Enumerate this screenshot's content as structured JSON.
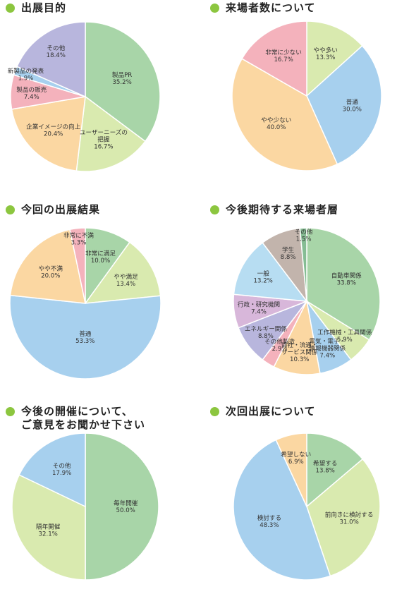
{
  "chart_data": [
    {
      "type": "pie",
      "title": "出展目的",
      "slices": [
        {
          "label": "製品PR",
          "value": "35.2%",
          "pct": 35.2,
          "color": "#a8d5a8"
        },
        {
          "label": "ユーザーニーズの把握",
          "lines": [
            "ユーザーニーズの",
            "把握"
          ],
          "value": "16.7%",
          "pct": 16.7,
          "color": "#d9eaaf"
        },
        {
          "label": "企業イメージの向上",
          "value": "20.4%",
          "pct": 20.4,
          "color": "#fbd7a2"
        },
        {
          "label": "製品の販売",
          "value": "7.4%",
          "pct": 7.4,
          "color": "#f4b2bc"
        },
        {
          "label": "新製品の発表",
          "value": "1.9%",
          "pct": 1.9,
          "color": "#a7d0ee"
        },
        {
          "label": "その他",
          "value": "18.4%",
          "pct": 18.4,
          "color": "#b8b6dd"
        }
      ]
    },
    {
      "type": "pie",
      "title": "来場者数について",
      "slices": [
        {
          "label": "やや多い",
          "value": "13.3%",
          "pct": 13.3,
          "color": "#d9eaaf"
        },
        {
          "label": "普通",
          "value": "30.0%",
          "pct": 30.0,
          "color": "#a7d0ee"
        },
        {
          "label": "やや少ない",
          "value": "40.0%",
          "pct": 40.0,
          "color": "#fbd7a2"
        },
        {
          "label": "非常に少ない",
          "value": "16.7%",
          "pct": 16.7,
          "color": "#f4b2bc"
        }
      ]
    },
    {
      "type": "pie",
      "title": "今回の出展結果",
      "slices": [
        {
          "label": "非常に満足",
          "value": "10.0%",
          "pct": 10.0,
          "color": "#a8d5a8"
        },
        {
          "label": "やや満足",
          "value": "13.4%",
          "pct": 13.4,
          "color": "#d9eaaf"
        },
        {
          "label": "普通",
          "value": "53.3%",
          "pct": 53.3,
          "color": "#a7d0ee"
        },
        {
          "label": "やや不満",
          "value": "20.0%",
          "pct": 20.0,
          "color": "#fbd7a2"
        },
        {
          "label": "非常に不満",
          "value": "3.3%",
          "pct": 3.3,
          "color": "#f4b2bc"
        }
      ]
    },
    {
      "type": "pie",
      "title": "今後期待する来場者層",
      "slices": [
        {
          "label": "自動車関係",
          "value": "33.8%",
          "pct": 33.8,
          "color": "#a8d5a8"
        },
        {
          "label": "工作機械・工具関係",
          "value": "5.9%",
          "pct": 5.9,
          "color": "#d9eaaf"
        },
        {
          "label": "電気・電子・情報機器関係",
          "lines": [
            "電気・電子・",
            "情報機器関係"
          ],
          "value": "7.4%",
          "pct": 7.4,
          "color": "#a7d0ee"
        },
        {
          "label": "商社・流通・サービス関係",
          "lines": [
            "商社・流通・",
            "サービス関係"
          ],
          "value": "10.3%",
          "pct": 10.3,
          "color": "#fbd7a2"
        },
        {
          "label": "その他製造",
          "value": "2.9%",
          "pct": 2.9,
          "color": "#f4b2bc"
        },
        {
          "label": "エネルギー関係",
          "value": "8.8%",
          "pct": 8.8,
          "color": "#b8b6dd"
        },
        {
          "label": "行政・研究機関",
          "value": "7.4%",
          "pct": 7.4,
          "color": "#d8b7da"
        },
        {
          "label": "一般",
          "value": "13.2%",
          "pct": 13.2,
          "color": "#b7ddf2"
        },
        {
          "label": "学生",
          "value": "8.8%",
          "pct": 8.8,
          "color": "#c2b4ac"
        },
        {
          "label": "その他",
          "value": "1.5%",
          "pct": 1.5,
          "color": "#86bd94"
        }
      ]
    },
    {
      "type": "pie",
      "title": "今後の開催について、\nご意見をお聞かせ下さい",
      "slices": [
        {
          "label": "毎年開催",
          "value": "50.0%",
          "pct": 50.0,
          "color": "#a8d5a8"
        },
        {
          "label": "隔年開催",
          "value": "32.1%",
          "pct": 32.1,
          "color": "#d9eaaf"
        },
        {
          "label": "その他",
          "value": "17.9%",
          "pct": 17.9,
          "color": "#a7d0ee"
        }
      ]
    },
    {
      "type": "pie",
      "title": "次回出展について",
      "slices": [
        {
          "label": "希望する",
          "value": "13.8%",
          "pct": 13.8,
          "color": "#a8d5a8"
        },
        {
          "label": "前向きに検討する",
          "value": "31.0%",
          "pct": 31.0,
          "color": "#d9eaaf"
        },
        {
          "label": "検討する",
          "value": "48.3%",
          "pct": 48.3,
          "color": "#a7d0ee"
        },
        {
          "label": "希望しない",
          "value": "6.9%",
          "pct": 6.9,
          "color": "#fbd7a2"
        }
      ]
    }
  ]
}
